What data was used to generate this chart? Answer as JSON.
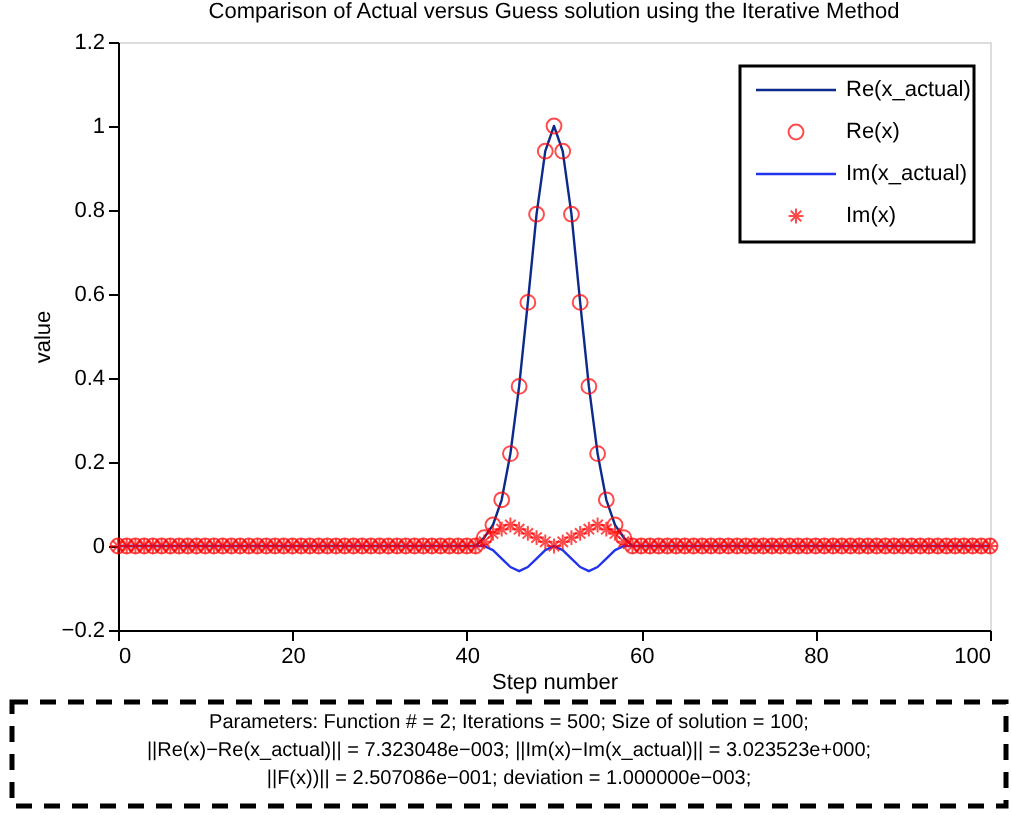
{
  "chart_data": {
    "type": "line",
    "title": "Comparison of Actual versus Guess solution using the Iterative Method",
    "xlabel": "Step number",
    "ylabel": "value",
    "x": [
      0,
      1,
      2,
      3,
      4,
      5,
      6,
      7,
      8,
      9,
      10,
      11,
      12,
      13,
      14,
      15,
      16,
      17,
      18,
      19,
      20,
      21,
      22,
      23,
      24,
      25,
      26,
      27,
      28,
      29,
      30,
      31,
      32,
      33,
      34,
      35,
      36,
      37,
      38,
      39,
      40,
      41,
      42,
      43,
      44,
      45,
      46,
      47,
      48,
      49,
      50,
      51,
      52,
      53,
      54,
      55,
      56,
      57,
      58,
      59,
      60,
      61,
      62,
      63,
      64,
      65,
      66,
      67,
      68,
      69,
      70,
      71,
      72,
      73,
      74,
      75,
      76,
      77,
      78,
      79,
      80,
      81,
      82,
      83,
      84,
      85,
      86,
      87,
      88,
      89,
      90,
      91,
      92,
      93,
      94,
      95,
      96,
      97,
      98,
      99,
      100
    ],
    "series": [
      {
        "name": "Re(x_actual)",
        "marker": "none",
        "color": "#0b2a8c",
        "values": [
          0,
          0,
          0,
          0,
          0,
          0,
          0,
          0,
          0,
          0,
          0,
          0,
          0,
          0,
          0,
          0,
          0,
          0,
          0,
          0,
          0,
          0,
          0,
          0,
          0,
          0,
          0,
          0,
          0,
          0,
          0,
          0,
          0,
          0,
          0,
          0,
          0,
          0,
          0,
          0,
          0,
          0,
          0.02,
          0.05,
          0.11,
          0.22,
          0.38,
          0.58,
          0.79,
          0.94,
          1,
          0.94,
          0.79,
          0.58,
          0.38,
          0.22,
          0.11,
          0.05,
          0.02,
          0,
          0,
          0,
          0,
          0,
          0,
          0,
          0,
          0,
          0,
          0,
          0,
          0,
          0,
          0,
          0,
          0,
          0,
          0,
          0,
          0,
          0,
          0,
          0,
          0,
          0,
          0,
          0,
          0,
          0,
          0,
          0,
          0,
          0,
          0,
          0,
          0,
          0,
          0,
          0,
          0,
          0
        ]
      },
      {
        "name": "Re(x)",
        "type": "scatter",
        "marker": "circle",
        "color": "#ff0000",
        "values": [
          0,
          0,
          0,
          0,
          0,
          0,
          0,
          0,
          0,
          0,
          0,
          0,
          0,
          0,
          0,
          0,
          0,
          0,
          0,
          0,
          0,
          0,
          0,
          0,
          0,
          0,
          0,
          0,
          0,
          0,
          0,
          0,
          0,
          0,
          0,
          0,
          0,
          0,
          0,
          0,
          0,
          0,
          0.02,
          0.05,
          0.11,
          0.22,
          0.38,
          0.58,
          0.79,
          0.94,
          1,
          0.94,
          0.79,
          0.58,
          0.38,
          0.22,
          0.11,
          0.05,
          0.02,
          0,
          0,
          0,
          0,
          0,
          0,
          0,
          0,
          0,
          0,
          0,
          0,
          0,
          0,
          0,
          0,
          0,
          0,
          0,
          0,
          0,
          0,
          0,
          0,
          0,
          0,
          0,
          0,
          0,
          0,
          0,
          0,
          0,
          0,
          0,
          0,
          0,
          0,
          0,
          0,
          0,
          0
        ]
      },
      {
        "name": "Im(x_actual)",
        "marker": "none",
        "color": "#2233ee",
        "values": [
          0,
          0,
          0,
          0,
          0,
          0,
          0,
          0,
          0,
          0,
          0,
          0,
          0,
          0,
          0,
          0,
          0,
          0,
          0,
          0,
          0,
          0,
          0,
          0,
          0,
          0,
          0,
          0,
          0,
          0,
          0,
          0,
          0,
          0,
          0,
          0,
          0,
          0,
          0,
          0,
          0,
          0,
          0,
          -0.01,
          -0.03,
          -0.05,
          -0.06,
          -0.05,
          -0.03,
          -0.01,
          0,
          -0.01,
          -0.03,
          -0.05,
          -0.06,
          -0.05,
          -0.03,
          -0.01,
          0,
          0,
          0,
          0,
          0,
          0,
          0,
          0,
          0,
          0,
          0,
          0,
          0,
          0,
          0,
          0,
          0,
          0,
          0,
          0,
          0,
          0,
          0,
          0,
          0,
          0,
          0,
          0,
          0,
          0,
          0,
          0,
          0,
          0,
          0,
          0,
          0,
          0,
          0,
          0,
          0,
          0,
          0
        ]
      },
      {
        "name": "Im(x)",
        "type": "scatter",
        "marker": "cross",
        "color": "#ff0000",
        "values": [
          0,
          0,
          0,
          0,
          0,
          0,
          0,
          0,
          0,
          0,
          0,
          0,
          0,
          0,
          0,
          0,
          0,
          0,
          0,
          0,
          0,
          0,
          0,
          0,
          0,
          0,
          0,
          0,
          0,
          0,
          0,
          0,
          0,
          0,
          0,
          0,
          0,
          0,
          0,
          0,
          0,
          0,
          0.01,
          0.03,
          0.04,
          0.05,
          0.04,
          0.03,
          0.02,
          0.01,
          0,
          0.01,
          0.02,
          0.03,
          0.04,
          0.05,
          0.04,
          0.03,
          0.01,
          0,
          0,
          0,
          0,
          0,
          0,
          0,
          0,
          0,
          0,
          0,
          0,
          0,
          0,
          0,
          0,
          0,
          0,
          0,
          0,
          0,
          0,
          0,
          0,
          0,
          0,
          0,
          0,
          0,
          0,
          0,
          0,
          0,
          0,
          0,
          0,
          0,
          0,
          0,
          0,
          0,
          0
        ]
      }
    ],
    "xlim": [
      0,
      100
    ],
    "xticks": [
      0,
      20,
      40,
      60,
      80,
      100
    ],
    "ylim": [
      -0.2,
      1.2
    ],
    "yticks": [
      -0.2,
      0,
      0.2,
      0.4,
      0.6,
      0.8,
      1,
      1.2
    ],
    "grid": false,
    "legend": "top right",
    "annotations": [
      "Parameters: Function # = 2; Iterations = 500; Size of solution = 100;",
      "||Re(x)−Re(x_actual)|| = 7.323048e−003; ||Im(x)−Im(x_actual)|| = 3.023523e+000;",
      "||F(x))|| = 2.507086e−001; deviation = 1.000000e−003;"
    ]
  }
}
